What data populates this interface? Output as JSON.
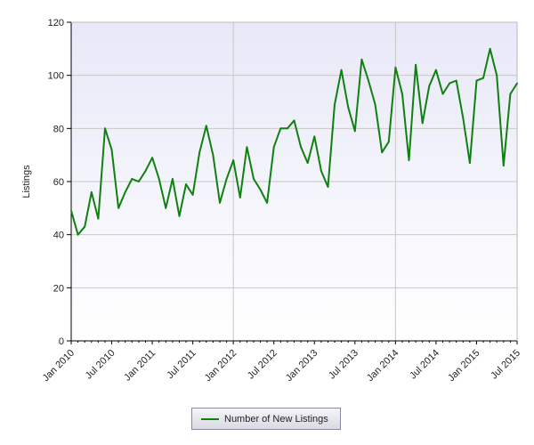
{
  "chart_data": {
    "type": "line",
    "title": "",
    "xlabel": "",
    "ylabel": "Listings",
    "ylim": [
      0,
      120
    ],
    "yticks": [
      0,
      20,
      40,
      60,
      80,
      100,
      120
    ],
    "x_tick_labels": [
      "Jan 2010",
      "Jul 2010",
      "Jan 2011",
      "Jul 2011",
      "Jan 2012",
      "Jul 2012",
      "Jan 2013",
      "Jul 2013",
      "Jan 2014",
      "Jul 2014",
      "Jan 2015",
      "Jul 2015"
    ],
    "x_start": "Jan 2010",
    "x_end": "Jul 2015",
    "grid": true,
    "legend_position": "bottom-center",
    "colors": {
      "series": "#108010",
      "plot_bg_top": "#e8e8f8",
      "plot_bg_bottom": "#ffffff",
      "grid": "#c8c8c8"
    },
    "series": [
      {
        "name": "Number of New Listings",
        "values": [
          49,
          40,
          43,
          56,
          46,
          80,
          72,
          50,
          56,
          61,
          60,
          64,
          69,
          61,
          50,
          61,
          47,
          59,
          55,
          71,
          81,
          70,
          52,
          61,
          68,
          54,
          73,
          61,
          57,
          52,
          73,
          80,
          80,
          83,
          73,
          67,
          77,
          64,
          58,
          89,
          102,
          88,
          79,
          106,
          98,
          89,
          71,
          75,
          103,
          93,
          68,
          104,
          82,
          96,
          102,
          93,
          97,
          98,
          84,
          67,
          98,
          99,
          110,
          100,
          66,
          93,
          97
        ]
      }
    ]
  }
}
